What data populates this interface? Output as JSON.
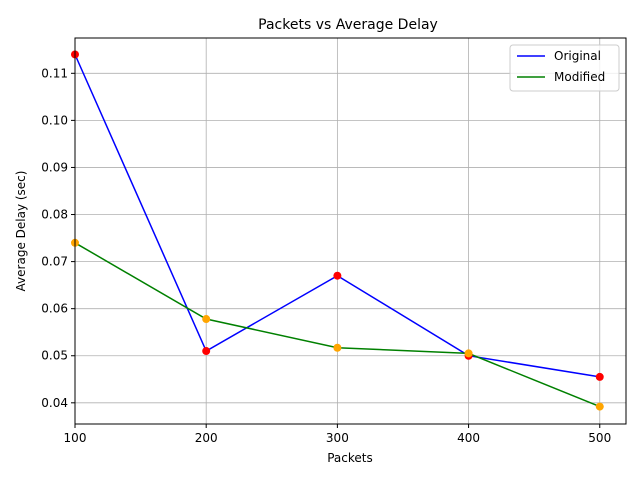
{
  "chart_data": {
    "type": "line",
    "title": "Packets vs Average Delay",
    "xlabel": "Packets",
    "ylabel": "Average Delay (sec)",
    "x": [
      100,
      200,
      300,
      400,
      500
    ],
    "xlim": [
      100,
      520
    ],
    "ylim": [
      0.0355,
      0.1175
    ],
    "xticks": [
      100,
      200,
      300,
      400,
      500
    ],
    "yticks": [
      0.04,
      0.05,
      0.06,
      0.07,
      0.08,
      0.09,
      0.1,
      0.11
    ],
    "ytick_labels": [
      "0.04",
      "0.05",
      "0.06",
      "0.07",
      "0.08",
      "0.09",
      "0.10",
      "0.11"
    ],
    "grid": true,
    "legend_position": "top-right",
    "series": [
      {
        "name": "Original",
        "values": [
          0.114,
          0.051,
          0.067,
          0.05,
          0.0455
        ],
        "line_color": "#0000ff",
        "marker_color": "#ff0000"
      },
      {
        "name": "Modified",
        "values": [
          0.074,
          0.0578,
          0.0517,
          0.0505,
          0.0392
        ],
        "line_color": "#008000",
        "marker_color": "#ffa500"
      }
    ]
  }
}
